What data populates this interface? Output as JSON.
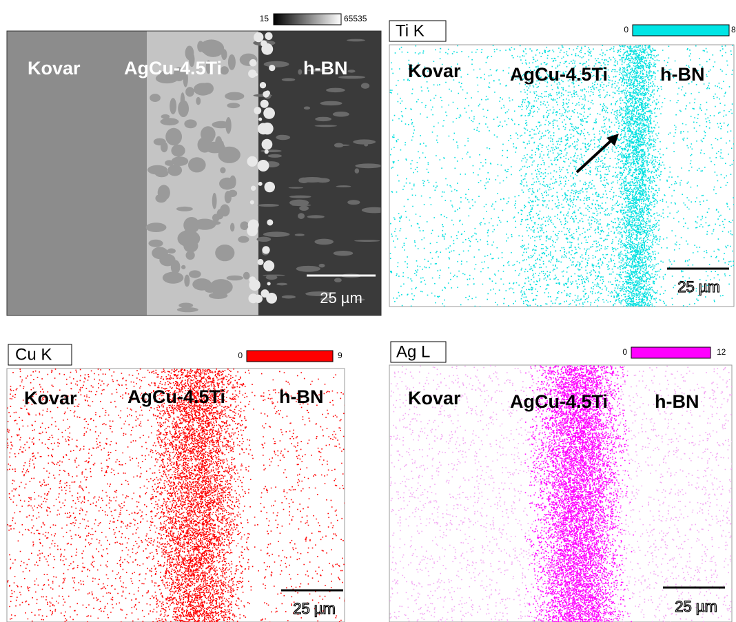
{
  "sem": {
    "colorbar": {
      "min": 15,
      "max": 65535
    },
    "labels": [
      "Kovar",
      "AgCu-4.5Ti",
      "h-BN"
    ],
    "scale_bar": "25 µm"
  },
  "maps": [
    {
      "element": "Ti K",
      "colorbar": {
        "min": 0,
        "max": 8
      },
      "labels": [
        "Kovar",
        "AgCu-4.5Ti",
        "h-BN"
      ],
      "scale_bar": "25 µm"
    },
    {
      "element": "Cu K",
      "colorbar": {
        "min": 0,
        "max": 9
      },
      "labels": [
        "Kovar",
        "AgCu-4.5Ti",
        "h-BN"
      ],
      "scale_bar": "25 µm"
    },
    {
      "element": "Ag L",
      "colorbar": {
        "min": 0,
        "max": 12
      },
      "labels": [
        "Kovar",
        "AgCu-4.5Ti",
        "h-BN"
      ],
      "scale_bar": "25 µm"
    }
  ]
}
